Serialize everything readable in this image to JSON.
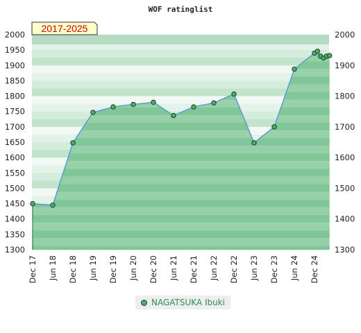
{
  "chart_data": {
    "type": "line",
    "title": "WOF ratinglist",
    "badge": "2017-2025",
    "xlabel": "",
    "ylabel": "",
    "ylim": [
      1300,
      2000
    ],
    "yticks": [
      1300,
      1350,
      1400,
      1450,
      1500,
      1550,
      1600,
      1650,
      1700,
      1750,
      1800,
      1850,
      1900,
      1950,
      2000
    ],
    "yticks_right": [
      1300,
      1400,
      1500,
      1600,
      1700,
      1800,
      1900,
      2000
    ],
    "xticks": [
      "Dec 17",
      "Jun 18",
      "Dec 18",
      "Jun 19",
      "Dec 19",
      "Jun 20",
      "Dec 20",
      "Jun 21",
      "Dec 21",
      "Jun 22",
      "Dec 22",
      "Jun 23",
      "Dec 23",
      "Jun 24",
      "Dec 24"
    ],
    "series": [
      {
        "name": "NAGATSUKA Ibuki",
        "color": "#4caf6a",
        "line_color": "#5b9bd5",
        "points": [
          {
            "t": 0,
            "y": 1450
          },
          {
            "t": 1,
            "y": 1445
          },
          {
            "t": 2,
            "y": 1648
          },
          {
            "t": 3,
            "y": 1747
          },
          {
            "t": 4,
            "y": 1765
          },
          {
            "t": 5,
            "y": 1773
          },
          {
            "t": 6,
            "y": 1780
          },
          {
            "t": 7,
            "y": 1737
          },
          {
            "t": 8,
            "y": 1765
          },
          {
            "t": 9,
            "y": 1778
          },
          {
            "t": 10,
            "y": 1807
          },
          {
            "t": 11,
            "y": 1648
          },
          {
            "t": 12,
            "y": 1700
          },
          {
            "t": 13,
            "y": 1888
          },
          {
            "t": 14,
            "y": 1940
          },
          {
            "t": 14.15,
            "y": 1946
          },
          {
            "t": 14.3,
            "y": 1930
          },
          {
            "t": 14.45,
            "y": 1924
          },
          {
            "t": 14.6,
            "y": 1930
          },
          {
            "t": 14.75,
            "y": 1932
          }
        ]
      }
    ],
    "grid": true,
    "legend": "bottom"
  },
  "colors": {
    "band_light": "#e8f4ec",
    "band_mid": "#bfe3cb",
    "band_dark": "#8fcaa3",
    "area_fill": "#6dbb85",
    "badge_bg": "#ffffcc",
    "badge_text": "#cc0000"
  }
}
